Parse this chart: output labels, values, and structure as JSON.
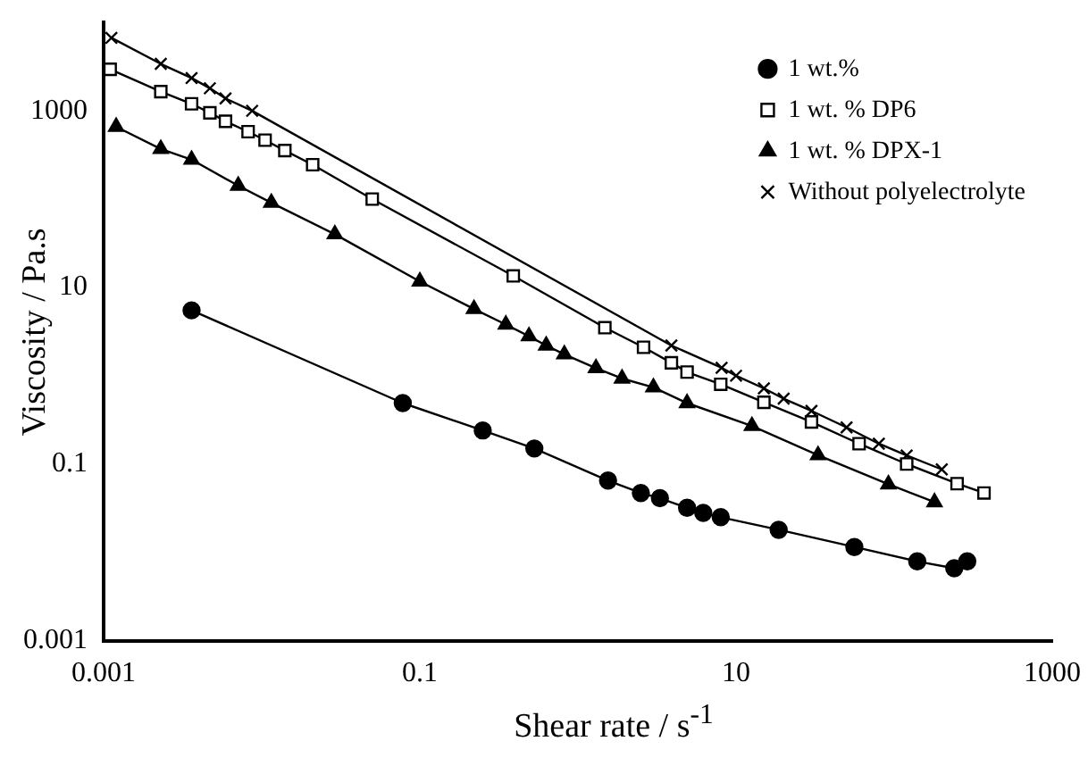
{
  "chart_data": {
    "type": "line",
    "xlabel": "Shear rate / s$^{-1}$",
    "ylabel": "Viscosity / Pa.s",
    "log": "xy",
    "grid": false,
    "legend": "top right",
    "line_style": "solid",
    "xlim": [
      0.001,
      1000
    ],
    "xticks": [
      0.001,
      0.1,
      10,
      1000
    ],
    "ylim": [
      0.001,
      10000
    ],
    "yticks": [
      0.001,
      0.1,
      10,
      1000
    ],
    "series": [
      {
        "name": "1 wt.%",
        "color": "#000000",
        "marker": "circle",
        "x": [
          0.0036,
          0.078,
          0.25,
          0.53,
          1.55,
          2.5,
          3.3,
          4.9,
          6.2,
          8,
          18.6,
          56,
          140,
          240,
          290
        ],
        "values": [
          5.5,
          0.49,
          0.24,
          0.15,
          0.065,
          0.047,
          0.041,
          0.032,
          0.028,
          0.025,
          0.018,
          0.0115,
          0.0079,
          0.0066,
          0.0079
        ]
      },
      {
        "name": "1 wt. % DP6",
        "color": "#000000",
        "marker": "square",
        "x": [
          0.0011,
          0.0023,
          0.0036,
          0.0047,
          0.0059,
          0.0082,
          0.0105,
          0.014,
          0.021,
          0.05,
          0.39,
          1.48,
          2.6,
          3.9,
          4.9,
          8,
          15,
          30,
          60,
          120,
          250,
          370
        ],
        "values": [
          2950,
          1650,
          1200,
          950,
          760,
          580,
          465,
          355,
          245,
          100,
          13.5,
          3.5,
          2.1,
          1.4,
          1.1,
          0.8,
          0.5,
          0.3,
          0.17,
          0.1,
          0.06,
          0.047
        ]
      },
      {
        "name": "1 wt. % DPX-1",
        "color": "#000000",
        "marker": "triangle",
        "x": [
          0.0012,
          0.0023,
          0.0036,
          0.0071,
          0.0115,
          0.029,
          0.1,
          0.22,
          0.35,
          0.49,
          0.63,
          0.82,
          1.3,
          1.9,
          3.0,
          4.9,
          12.6,
          33,
          92,
          180
        ],
        "values": [
          660,
          370,
          280,
          142,
          91,
          40,
          11.7,
          5.7,
          3.8,
          2.8,
          2.2,
          1.75,
          1.22,
          0.93,
          0.74,
          0.49,
          0.27,
          0.126,
          0.059,
          0.037
        ]
      },
      {
        "name": "Without polyelectrolyte",
        "color": "#000000",
        "marker": "cross",
        "x": [
          0.00112,
          0.0023,
          0.0036,
          0.0047,
          0.0059,
          0.0087,
          3.9,
          8.1,
          10,
          15,
          20,
          30,
          50,
          80,
          120,
          200
        ],
        "values": [
          6700,
          3400,
          2350,
          1800,
          1380,
          1000,
          2.2,
          1.23,
          1.0,
          0.72,
          0.55,
          0.4,
          0.26,
          0.17,
          0.125,
          0.087
        ]
      }
    ]
  }
}
